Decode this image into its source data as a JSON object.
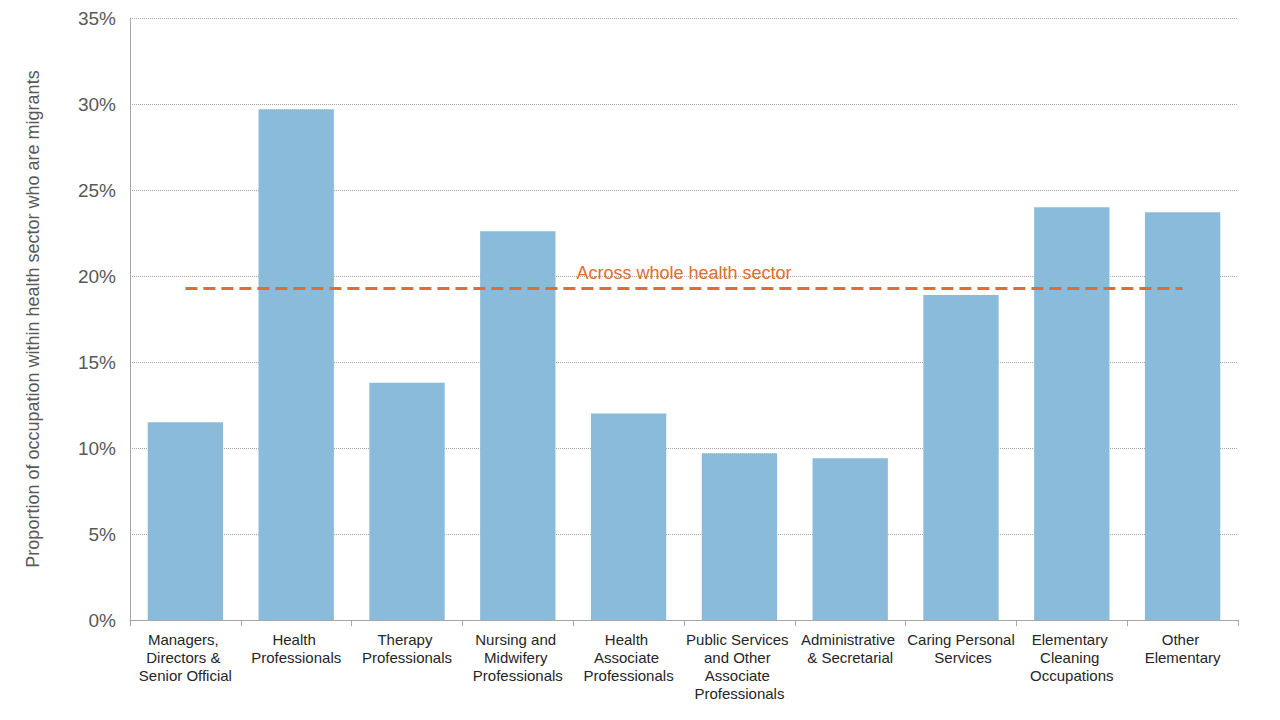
{
  "chart_data": {
    "type": "bar",
    "y_label": "Proportion of occupation within health sector who are migrants",
    "categories": [
      "Managers, Directors & Senior Official",
      "Health Professionals",
      "Therapy Professionals",
      "Nursing and Midwifery Professionals",
      "Health Associate Professionals",
      "Public Services and Other Associate Professionals",
      "Administrative & Secretarial",
      "Caring Personal Services",
      "Elementary Cleaning Occupations",
      "Other Elementary"
    ],
    "values": [
      11.5,
      29.7,
      13.8,
      22.6,
      12.0,
      9.7,
      9.4,
      18.9,
      24.0,
      23.7
    ],
    "color": "#8bbbda",
    "ylim": [
      0,
      35
    ],
    "yticks": [
      {
        "value": 0,
        "label": "0%"
      },
      {
        "value": 5,
        "label": "5%"
      },
      {
        "value": 10,
        "label": "10%"
      },
      {
        "value": 15,
        "label": "15%"
      },
      {
        "value": 20,
        "label": "20%"
      },
      {
        "value": 25,
        "label": "25%"
      },
      {
        "value": 30,
        "label": "30%"
      },
      {
        "value": 35,
        "label": "35%"
      }
    ],
    "grid": true,
    "reference_line": {
      "label": "Across whole health sector",
      "value": 19.3,
      "color": "#e46c2e",
      "line_style": "dashed"
    }
  }
}
